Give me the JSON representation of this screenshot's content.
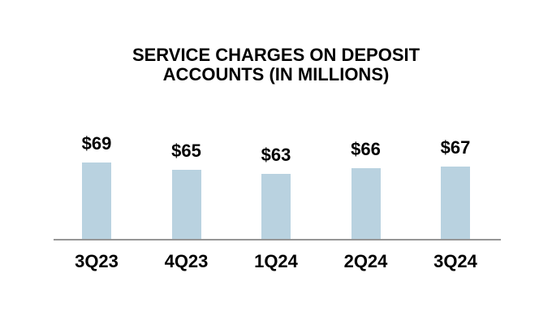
{
  "chart_data": {
    "type": "bar",
    "title": "SERVICE CHARGES ON DEPOSIT ACCOUNTS (IN MILLIONS)",
    "categories": [
      "3Q23",
      "4Q23",
      "1Q24",
      "2Q24",
      "3Q24"
    ],
    "values": [
      69,
      65,
      63,
      66,
      67
    ],
    "value_labels": [
      "$69",
      "$65",
      "$63",
      "$66",
      "$67"
    ],
    "xlabel": "",
    "ylabel": "",
    "grid": false,
    "legend_position": "none",
    "bar_color": "#B9D2E0",
    "axis_line_color": "#969696",
    "text_color": "#000000",
    "background_color": "#FFFFFF"
  }
}
